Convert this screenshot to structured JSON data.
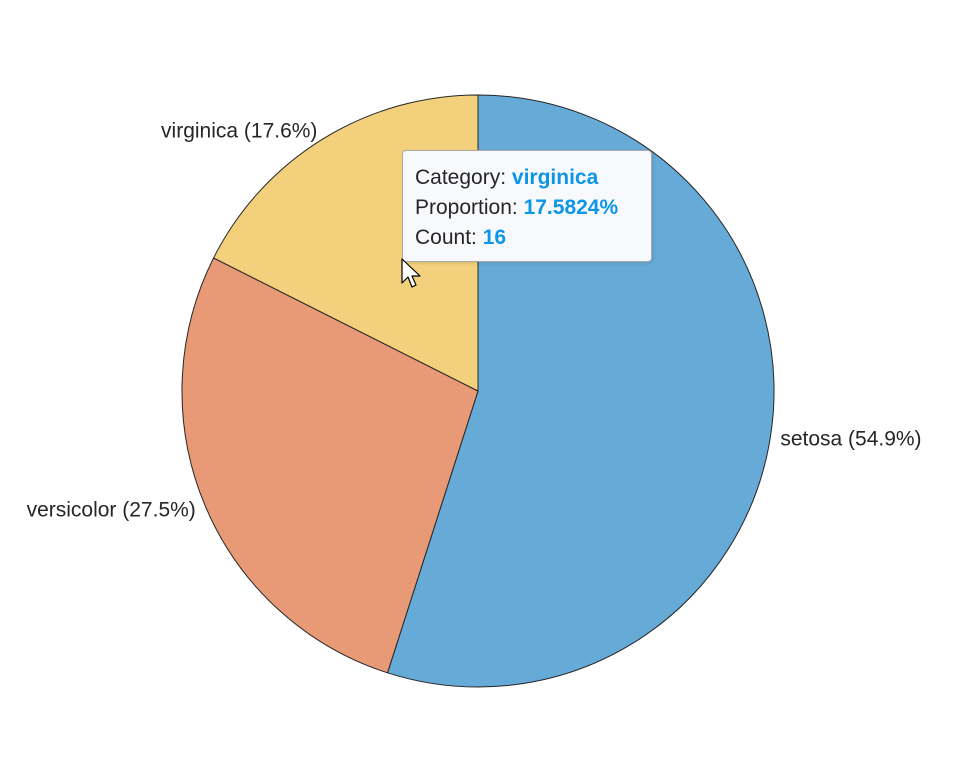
{
  "chart_data": {
    "type": "pie",
    "categories": [
      "setosa",
      "versicolor",
      "virginica"
    ],
    "values": [
      50,
      25,
      16
    ],
    "percent_labels": [
      "54.9%",
      "27.5%",
      "17.6%"
    ],
    "slice_labels": [
      "setosa (54.9%)",
      "versicolor (27.5%)",
      "virginica (17.6%)"
    ],
    "colors": [
      "#66aad7",
      "#e89a77",
      "#f3d17c"
    ],
    "direction": "clockwise",
    "start": "top"
  },
  "datatip": {
    "category_label": "Category:",
    "category_value": "virginica",
    "proportion_label": "Proportion:",
    "proportion_value": "17.5824%",
    "count_label": "Count:",
    "count_value": "16",
    "value_color": "#0d95e8"
  },
  "cursor": {
    "icon": "arrow-cursor-icon"
  }
}
